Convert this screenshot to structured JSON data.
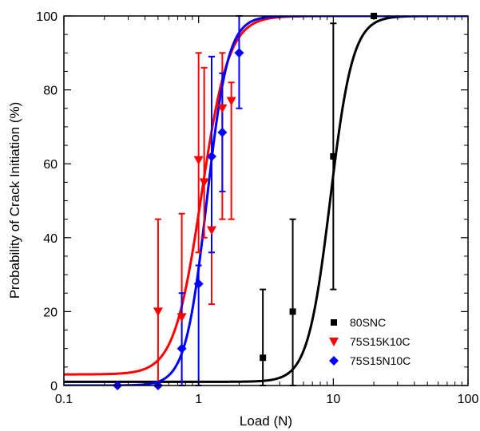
{
  "chart_data": {
    "type": "scatter",
    "xlabel": "Load (N)",
    "ylabel": "Probability of Crack Initiation (%)",
    "xscale": "log",
    "xlim": [
      0.1,
      100
    ],
    "ylim": [
      0,
      100
    ],
    "x_ticks": [
      0.1,
      1,
      10,
      100
    ],
    "x_tick_labels": [
      "0.1",
      "1",
      "10",
      "100"
    ],
    "y_ticks": [
      0,
      20,
      40,
      60,
      80,
      100
    ],
    "y_tick_labels": [
      "0",
      "20",
      "40",
      "60",
      "80",
      "100"
    ],
    "legend_position": "bottom-right",
    "series": [
      {
        "name": "80SNC",
        "color": "#000000",
        "marker": "square",
        "points": [
          {
            "x": 3,
            "y": 7.5,
            "err_low": 7.5,
            "err_high": 18.5
          },
          {
            "x": 5,
            "y": 20,
            "err_low": 20,
            "err_high": 25
          },
          {
            "x": 10,
            "y": 62,
            "err_low": 36,
            "err_high": 36
          },
          {
            "x": 20,
            "y": 100,
            "err_low": 0,
            "err_high": 0
          }
        ],
        "fit": {
          "x50": 9.5,
          "slope": 5.2,
          "floor": 1
        }
      },
      {
        "name": "75S15K10C",
        "color": "#ff0000",
        "marker": "triangle-down",
        "points": [
          {
            "x": 0.5,
            "y": 20,
            "err_low": 20,
            "err_high": 25
          },
          {
            "x": 0.75,
            "y": 18.5,
            "err_low": 18.5,
            "err_high": 28
          },
          {
            "x": 1.0,
            "y": 61,
            "err_low": 25,
            "err_high": 29
          },
          {
            "x": 1.1,
            "y": 55,
            "err_low": 15,
            "err_high": 31
          },
          {
            "x": 1.25,
            "y": 42,
            "err_low": 20,
            "err_high": 47
          },
          {
            "x": 1.5,
            "y": 75,
            "err_low": 30,
            "err_high": 15
          },
          {
            "x": 1.75,
            "y": 77,
            "err_low": 32,
            "err_high": 5
          }
        ],
        "fit": {
          "x50": 1.05,
          "slope": 4.3,
          "floor": 3
        }
      },
      {
        "name": "75S15N10C",
        "color": "#0000ff",
        "marker": "diamond",
        "points": [
          {
            "x": 0.25,
            "y": 0,
            "err_low": 0,
            "err_high": 0
          },
          {
            "x": 0.5,
            "y": 0,
            "err_low": 0,
            "err_high": 0
          },
          {
            "x": 0.75,
            "y": 10,
            "err_low": 10,
            "err_high": 15
          },
          {
            "x": 1.0,
            "y": 27.5,
            "err_low": 27.5,
            "err_high": 5
          },
          {
            "x": 1.25,
            "y": 62,
            "err_low": 26,
            "err_high": 27
          },
          {
            "x": 1.5,
            "y": 68.5,
            "err_low": 16,
            "err_high": 16
          },
          {
            "x": 2.0,
            "y": 90,
            "err_low": 15,
            "err_high": 10
          }
        ],
        "fit": {
          "x50": 1.15,
          "slope": 5.5,
          "floor": 0
        }
      }
    ]
  }
}
